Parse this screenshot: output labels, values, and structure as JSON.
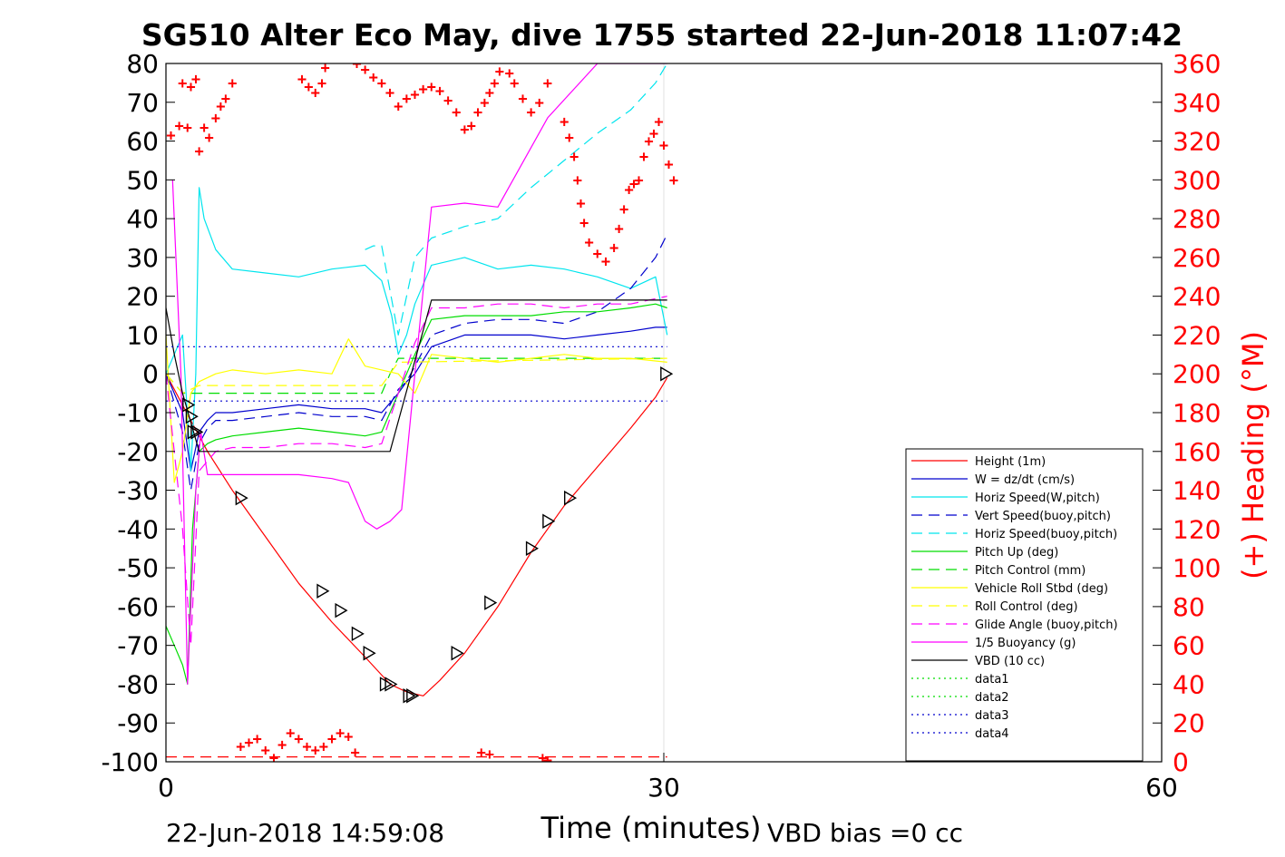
{
  "chart_data": {
    "type": "line",
    "title": "SG510 Alter Eco May, dive 1755 started 22-Jun-2018 11:07:42",
    "xlabel": "Time (minutes)",
    "ylabel_right": "(+) Heading (°M)",
    "xlim": [
      0,
      60
    ],
    "ylim_left": [
      -100,
      80
    ],
    "ylim_right": [
      0,
      360
    ],
    "x_ticks": [
      "0",
      "30",
      "60"
    ],
    "y_ticks_left": [
      "80",
      "70",
      "60",
      "50",
      "40",
      "30",
      "20",
      "10",
      "0",
      "-10",
      "-20",
      "-30",
      "-40",
      "-50",
      "-60",
      "-70",
      "-80",
      "-90",
      "-100"
    ],
    "y_ticks_right": [
      "360",
      "340",
      "320",
      "300",
      "280",
      "260",
      "240",
      "220",
      "200",
      "180",
      "160",
      "140",
      "120",
      "100",
      "80",
      "60",
      "40",
      "20",
      "0"
    ],
    "grid": "x-only",
    "legend_position": "lower-right",
    "footer_left": "22-Jun-2018 14:59:08",
    "footer_right": "VBD bias =0 cc",
    "colors": {
      "left_axis": "#000000",
      "right_axis": "#ff0000"
    },
    "series": [
      {
        "name": "Height (1m)",
        "color": "#ff0000",
        "style": "solid",
        "x": [
          0,
          1.5,
          2.5,
          4,
          6,
          8,
          10,
          12,
          13.5,
          14.5,
          15.5,
          16.5,
          18,
          20,
          22,
          24,
          26,
          28,
          29.5,
          30.2
        ],
        "y": [
          0,
          -12,
          -20,
          -30,
          -42,
          -54,
          -64,
          -73,
          -80,
          -82,
          -83,
          -79,
          -72,
          -60,
          -46,
          -34,
          -24,
          -14,
          -6,
          -1
        ]
      },
      {
        "name": "W = dz/dt (cm/s)",
        "color": "#0000cd",
        "style": "solid",
        "x": [
          0,
          1,
          1.5,
          2,
          2.5,
          3,
          4,
          6,
          8,
          10,
          12,
          13,
          14,
          14.5,
          15,
          16,
          18,
          20,
          22,
          24,
          26,
          28,
          29.5,
          30.2
        ],
        "y": [
          0,
          -10,
          -25,
          -15,
          -12,
          -10,
          -10,
          -9,
          -8,
          -9,
          -9,
          -10,
          -5,
          -2,
          0,
          7,
          10,
          10,
          10,
          9,
          10,
          11,
          12,
          12
        ]
      },
      {
        "name": "Horiz Speed(W,pitch)",
        "color": "#00e5ee",
        "style": "solid",
        "x": [
          0,
          1,
          1.5,
          1.8,
          2,
          2.3,
          3,
          4,
          6,
          8,
          10,
          12,
          13,
          13.6,
          14,
          14.5,
          15,
          16,
          18,
          20,
          22,
          24,
          26,
          28,
          29.5,
          30.2
        ],
        "y": [
          0,
          10,
          -25,
          0,
          48,
          40,
          32,
          27,
          26,
          25,
          27,
          28,
          24,
          15,
          5,
          10,
          18,
          28,
          30,
          27,
          28,
          27,
          25,
          22,
          25,
          10
        ]
      },
      {
        "name": "Vert Speed(buoy,pitch)",
        "color": "#0000cd",
        "style": "dashed",
        "x": [
          0,
          1,
          1.5,
          2,
          2.5,
          3,
          4,
          6,
          8,
          10,
          12,
          13,
          14,
          14.5,
          15,
          16,
          18,
          20,
          22,
          24,
          26,
          28,
          29.5,
          30.2
        ],
        "y": [
          0,
          -15,
          -30,
          -18,
          -14,
          -12,
          -12,
          -11,
          -10,
          -11,
          -11,
          -12,
          -4,
          -2,
          2,
          10,
          13,
          14,
          14,
          13,
          16,
          22,
          30,
          36
        ]
      },
      {
        "name": "Horiz Speed(buoy,pitch)",
        "color": "#00e5ee",
        "style": "dashed",
        "x": [
          12,
          12.5,
          13,
          14,
          15,
          16,
          18,
          20,
          22,
          24,
          26,
          28,
          29.5,
          30.2
        ],
        "y": [
          32,
          33,
          33,
          10,
          30,
          35,
          38,
          40,
          48,
          55,
          62,
          68,
          75,
          80
        ]
      },
      {
        "name": "Pitch Up (deg)",
        "color": "#00dd00",
        "style": "solid",
        "x": [
          0,
          0.5,
          1,
          1.3,
          1.6,
          2,
          2.5,
          3,
          4,
          6,
          8,
          10,
          12,
          13,
          14,
          14.5,
          15,
          16,
          18,
          20,
          22,
          24,
          26,
          28,
          29.5,
          30.2
        ],
        "y": [
          -65,
          -70,
          -75,
          -80,
          -40,
          -20,
          -18,
          -17,
          -16,
          -15,
          -14,
          -15,
          -16,
          -15,
          -5,
          0,
          5,
          14,
          15,
          15,
          15,
          16,
          16,
          17,
          18,
          17
        ]
      },
      {
        "name": "Pitch Control (mm)",
        "color": "#00dd00",
        "style": "dashed",
        "x": [
          0,
          1,
          2,
          3,
          13,
          13.5,
          14,
          30.2
        ],
        "y": [
          0,
          -5,
          -5,
          -5,
          -5,
          0,
          4,
          4
        ]
      },
      {
        "name": "Vehicle Roll Stbd (deg)",
        "color": "#ffff00",
        "style": "solid",
        "x": [
          0,
          0.5,
          1,
          1.5,
          2,
          3,
          4,
          6,
          8,
          10,
          11,
          12,
          13,
          14,
          15,
          16,
          18,
          20,
          22,
          24,
          26,
          28,
          30.2
        ],
        "y": [
          10,
          -28,
          -20,
          -5,
          -2,
          0,
          1,
          0,
          1,
          0,
          9,
          2,
          1,
          0,
          -5,
          5,
          4,
          3,
          4,
          5,
          4,
          4,
          3
        ]
      },
      {
        "name": "Roll Control (deg)",
        "color": "#ffff00",
        "style": "dashed",
        "x": [
          0,
          1,
          2,
          13,
          14,
          30.2
        ],
        "y": [
          0,
          -5,
          -3,
          -3,
          3,
          4
        ]
      },
      {
        "name": "Glide Angle (buoy,pitch)",
        "color": "#ff00ff",
        "style": "dashed",
        "x": [
          0,
          1,
          1.5,
          2,
          3,
          4,
          6,
          8,
          10,
          12,
          13,
          14,
          15,
          16,
          18,
          20,
          22,
          24,
          26,
          28,
          30.2
        ],
        "y": [
          0,
          -40,
          -70,
          -25,
          -20,
          -19,
          -19,
          -18,
          -18,
          -19,
          -18,
          -5,
          8,
          17,
          17,
          18,
          18,
          17,
          18,
          18,
          20
        ]
      },
      {
        "name": "1/5 Buoyancy (g)",
        "color": "#ff00ff",
        "style": "solid",
        "x": [
          0.4,
          0.9,
          1.3,
          1.8,
          2.1,
          2.5,
          8,
          10,
          11,
          12,
          12.7,
          13.5,
          14.2,
          15,
          16,
          18,
          20,
          23,
          26,
          29,
          30.2
        ],
        "y": [
          50,
          0,
          -80,
          -30,
          -15,
          -26,
          -26,
          -27,
          -28,
          -38,
          -40,
          -38,
          -35,
          0,
          43,
          44,
          43,
          66,
          80,
          80,
          80
        ]
      },
      {
        "name": "VBD (10 cc)",
        "color": "#000000",
        "style": "solid",
        "x": [
          0,
          0.5,
          1,
          2,
          13.5,
          16,
          30.2
        ],
        "y": [
          17,
          5,
          -5,
          -20,
          -20,
          19,
          19
        ]
      },
      {
        "name": "data1",
        "color": "#00dd00",
        "style": "dotted",
        "x": [],
        "y": []
      },
      {
        "name": "data2",
        "color": "#00dd00",
        "style": "dotted",
        "x": [],
        "y": []
      },
      {
        "name": "data3",
        "color": "#0000cd",
        "style": "dotted",
        "x": [
          0,
          30.2
        ],
        "y": [
          7,
          7
        ]
      },
      {
        "name": "data4",
        "color": "#0000cd",
        "style": "dotted",
        "x": [
          0,
          30.2
        ],
        "y": [
          -7,
          -7
        ]
      }
    ],
    "heading_markers": {
      "symbol": "+",
      "color": "#ff0000",
      "axis": "right",
      "x": [
        0.3,
        0.8,
        1.0,
        1.3,
        1.5,
        1.8,
        2.0,
        2.3,
        2.6,
        3.0,
        3.3,
        3.6,
        4.0,
        5.6,
        7.8,
        8.2,
        8.6,
        9.0,
        9.4,
        9.6,
        11.5,
        12.0,
        12.5,
        13.0,
        13.5,
        14.0,
        14.5,
        15.0,
        15.5,
        16.0,
        16.5,
        17.0,
        17.5,
        18.0,
        18.4,
        18.8,
        19.2,
        19.5,
        19.8,
        20.1,
        20.4,
        20.7,
        21.0,
        21.5,
        22.0,
        22.5,
        23.0,
        23.5,
        24.0,
        24.3,
        24.6,
        24.8,
        25.0,
        25.2,
        25.5,
        26.0,
        26.5,
        27.0,
        27.3,
        27.6,
        27.9,
        28.2,
        28.5,
        28.8,
        29.1,
        29.4,
        29.7,
        30.0,
        30.3,
        30.6,
        4.5,
        5.0,
        5.5,
        6.0,
        6.5,
        7.0,
        7.5,
        8.0,
        8.5,
        9.0,
        9.5,
        10.0,
        10.5,
        11.0,
        11.4,
        19.0,
        19.5,
        22.7,
        23.0
      ],
      "y": [
        323,
        328,
        350,
        327,
        348,
        352,
        315,
        327,
        322,
        332,
        338,
        342,
        350,
        362,
        362,
        352,
        348,
        345,
        350,
        358,
        360,
        357,
        353,
        350,
        345,
        338,
        342,
        344,
        347,
        348,
        346,
        341,
        335,
        326,
        328,
        335,
        340,
        345,
        350,
        356,
        362,
        355,
        350,
        342,
        335,
        340,
        350,
        362,
        330,
        322,
        312,
        300,
        288,
        278,
        268,
        262,
        258,
        265,
        275,
        285,
        295,
        298,
        300,
        312,
        320,
        324,
        330,
        318,
        308,
        300,
        8,
        10,
        12,
        6,
        2,
        9,
        15,
        12,
        8,
        6,
        8,
        12,
        15,
        13,
        5,
        5,
        4,
        2,
        1
      ]
    },
    "markers_tri": {
      "symbol": "triangle",
      "color": "#000000",
      "x": [
        1.3,
        1.5,
        1.6,
        1.8,
        4.5,
        9.4,
        10.5,
        11.5,
        12.2,
        13.2,
        13.5,
        14.6,
        14.8,
        17.5,
        19.5,
        22.0,
        23.0,
        24.3,
        30.1
      ],
      "y": [
        -8,
        -11,
        -15,
        -15,
        -32,
        -56,
        -61,
        -67,
        -72,
        -80,
        -80,
        -83,
        -83,
        -72,
        -59,
        -45,
        -38,
        -32,
        0
      ]
    }
  }
}
